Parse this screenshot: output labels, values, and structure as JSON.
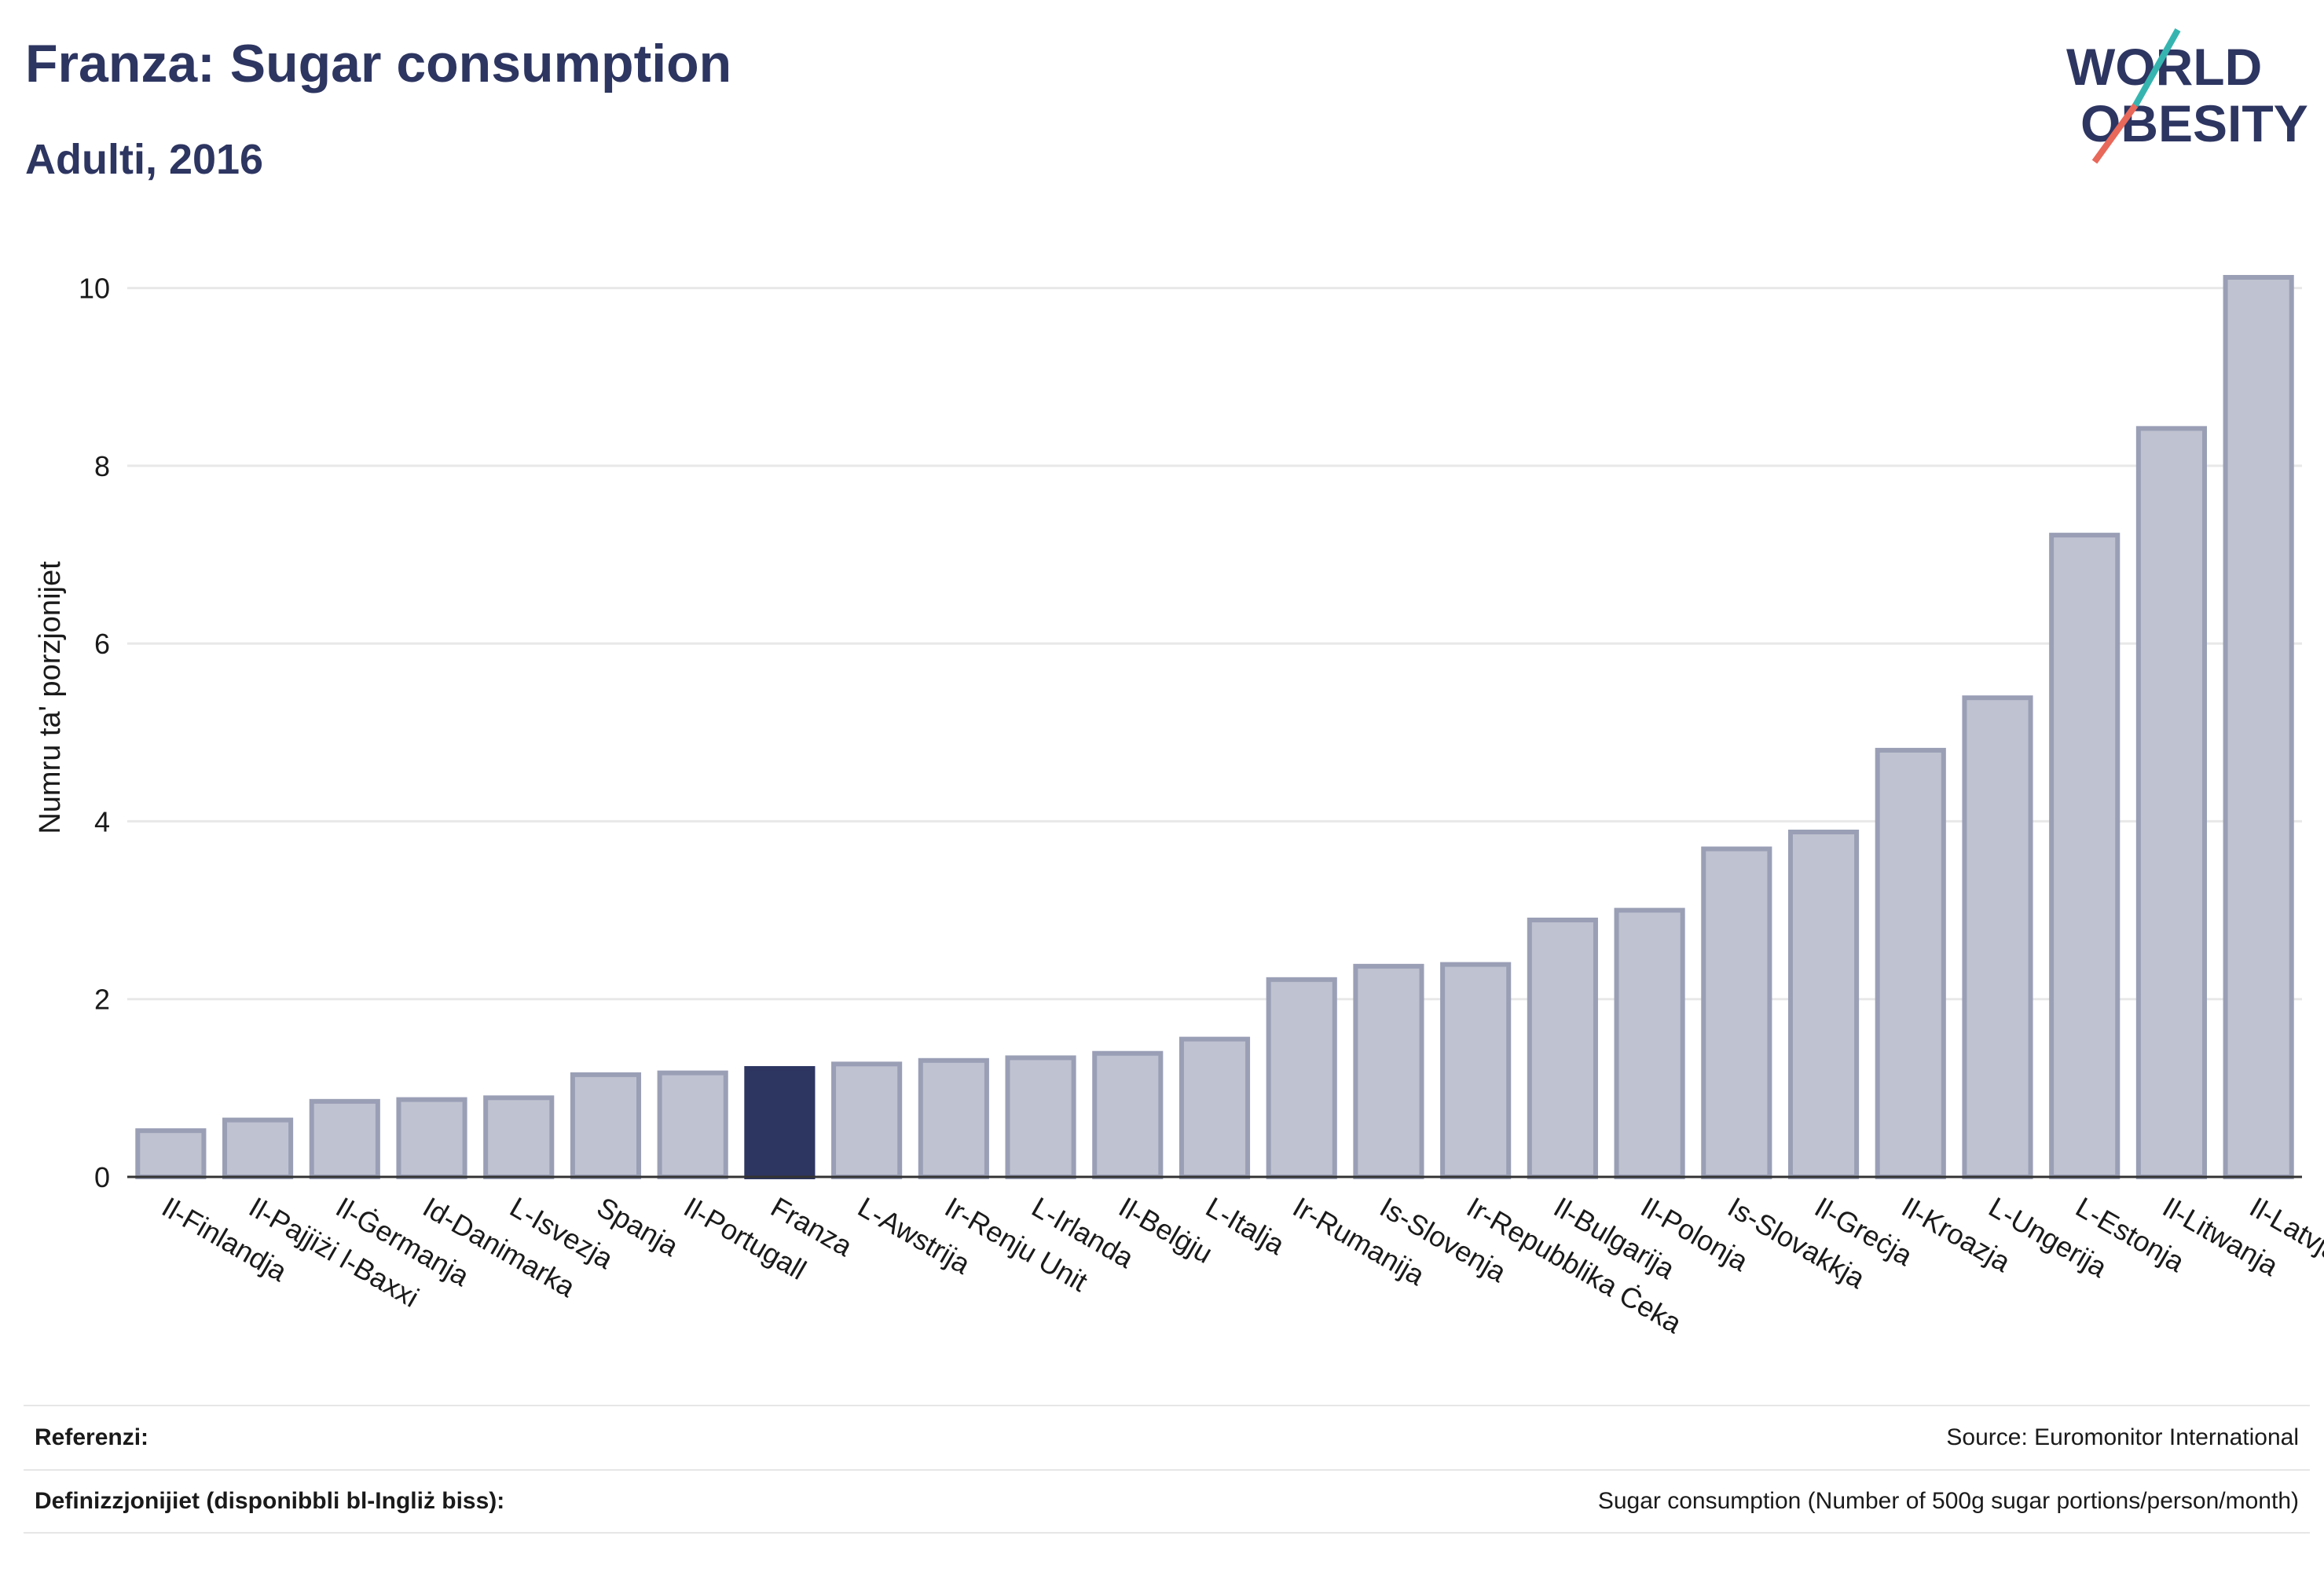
{
  "title": "Franza: Sugar consumption",
  "subtitle": "Adulti, 2016",
  "logo": {
    "line1": "WORLD",
    "line2": "OBESITY",
    "accent_teal": "#36b5b0",
    "accent_coral": "#e8685a",
    "text_color": "#2d3561"
  },
  "colors": {
    "bar": "#bfc2d0",
    "bar_stroke": "#9a9fb6",
    "highlight": "#2d3561",
    "grid": "#e8e8e8",
    "axis": "#333333"
  },
  "chart_data": {
    "type": "bar",
    "ylabel": "Numru ta' porzjonijet",
    "ylim": [
      0,
      10.5
    ],
    "yticks": [
      0,
      2,
      4,
      6,
      8,
      10
    ],
    "highlight": "Franza",
    "categories": [
      "Il-Finlandja",
      "Il-Pajjiżi l-Baxxi",
      "Il-Ġermanja",
      "Id-Danimarka",
      "L-Isvezja",
      "Spanja",
      "Il-Portugall",
      "Franza",
      "L-Awstrija",
      "Ir-Renju Unit",
      "L-Irlanda",
      "Il-Belġju",
      "L-Italja",
      "Ir-Rumanija",
      "Is-Slovenja",
      "Ir-Repubblika Ċeka",
      "Il-Bulgarija",
      "Il-Polonja",
      "Is-Slovakkja",
      "Il-Greċja",
      "Il-Kroazja",
      "L-Ungerija",
      "L-Estonja",
      "Il-Litwanja",
      "Il-Latvja"
    ],
    "values": [
      0.52,
      0.64,
      0.85,
      0.87,
      0.89,
      1.15,
      1.17,
      1.22,
      1.27,
      1.31,
      1.34,
      1.39,
      1.55,
      2.22,
      2.37,
      2.39,
      2.89,
      3.0,
      3.69,
      3.88,
      4.8,
      5.39,
      7.22,
      8.42,
      10.12
    ]
  },
  "references": {
    "row1_label": "Referenzi:",
    "row1_value": "Source: Euromonitor International",
    "row2_label": "Definizzjonijiet (disponibbli bl-Ingliż biss):",
    "row2_value": "Sugar consumption (Number of 500g sugar portions/person/month)"
  }
}
